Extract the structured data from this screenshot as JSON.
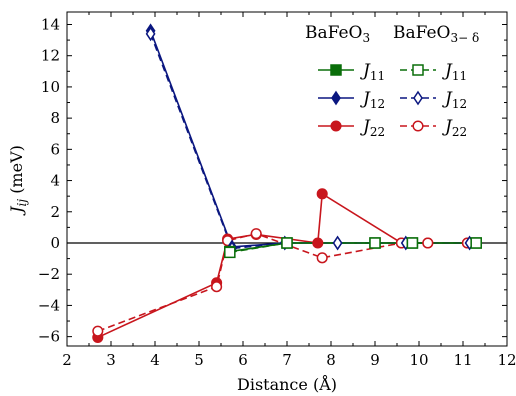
{
  "chart_data": {
    "type": "line",
    "xlabel": "Distance (Å)",
    "ylabel": "J",
    "ylabel_sub": "ij",
    "ylabel_unit": " (meV)",
    "xlim": [
      2,
      12
    ],
    "ylim": [
      -6.6,
      14.8
    ],
    "xticks": [
      2,
      3,
      4,
      5,
      6,
      7,
      8,
      9,
      10,
      11,
      12
    ],
    "yticks": [
      -6,
      -4,
      -2,
      0,
      2,
      4,
      6,
      8,
      10,
      12,
      14
    ],
    "zero_line": true,
    "grid": false,
    "legend_position": "top-right",
    "legend_headers": [
      {
        "base": "BaFeO",
        "sub": "3"
      },
      {
        "base": "BaFeO",
        "sub": "3− δ"
      }
    ],
    "legend_label_base": "J",
    "series": [
      {
        "name": "J11",
        "label_sub": "11",
        "group": "BaFeO3",
        "color": "#0a6e0a",
        "marker": "square",
        "filled": true,
        "dashed": false,
        "points": [
          [
            5.7,
            -0.55
          ],
          [
            7.0,
            0.0
          ],
          [
            9.0,
            0.0
          ],
          [
            9.85,
            0.0
          ],
          [
            11.3,
            0.0
          ]
        ]
      },
      {
        "name": "J12",
        "label_sub": "12",
        "group": "BaFeO3",
        "color": "#0b1780",
        "marker": "diamond",
        "filled": true,
        "dashed": false,
        "points": [
          [
            3.9,
            13.6
          ],
          [
            5.75,
            -0.25
          ],
          [
            6.95,
            0.0
          ],
          [
            8.15,
            0.0
          ],
          [
            9.7,
            0.0
          ],
          [
            11.15,
            0.0
          ]
        ]
      },
      {
        "name": "J22",
        "label_sub": "22",
        "group": "BaFeO3",
        "color": "#c8161d",
        "marker": "circle",
        "filled": true,
        "dashed": false,
        "points": [
          [
            2.7,
            -6.05
          ],
          [
            5.4,
            -2.55
          ],
          [
            5.65,
            0.25
          ],
          [
            6.3,
            0.55
          ],
          [
            7.7,
            0.0
          ],
          [
            7.8,
            3.15
          ],
          [
            9.6,
            0.0
          ],
          [
            10.2,
            0.0
          ],
          [
            11.1,
            0.0
          ]
        ]
      },
      {
        "name": "J11",
        "label_sub": "11",
        "group": "BaFeO3-δ",
        "color": "#0a6e0a",
        "marker": "square",
        "filled": false,
        "dashed": true,
        "points": [
          [
            5.7,
            -0.6
          ],
          [
            7.0,
            0.0
          ],
          [
            9.0,
            0.0
          ],
          [
            9.85,
            0.0
          ],
          [
            11.3,
            0.0
          ]
        ]
      },
      {
        "name": "J12",
        "label_sub": "12",
        "group": "BaFeO3-δ",
        "color": "#0b1780",
        "marker": "diamond",
        "filled": false,
        "dashed": true,
        "points": [
          [
            3.9,
            13.4
          ],
          [
            5.75,
            -0.35
          ],
          [
            6.95,
            0.0
          ],
          [
            8.15,
            0.0
          ],
          [
            9.7,
            0.0
          ],
          [
            11.15,
            0.0
          ]
        ]
      },
      {
        "name": "J22",
        "label_sub": "22",
        "group": "BaFeO3-δ",
        "color": "#c8161d",
        "marker": "circle",
        "filled": false,
        "dashed": true,
        "points": [
          [
            2.7,
            -5.65
          ],
          [
            5.4,
            -2.8
          ],
          [
            5.65,
            0.15
          ],
          [
            6.3,
            0.6
          ],
          [
            7.8,
            -0.95
          ],
          [
            9.6,
            0.0
          ],
          [
            10.2,
            0.0
          ],
          [
            11.1,
            0.0
          ]
        ]
      }
    ]
  }
}
